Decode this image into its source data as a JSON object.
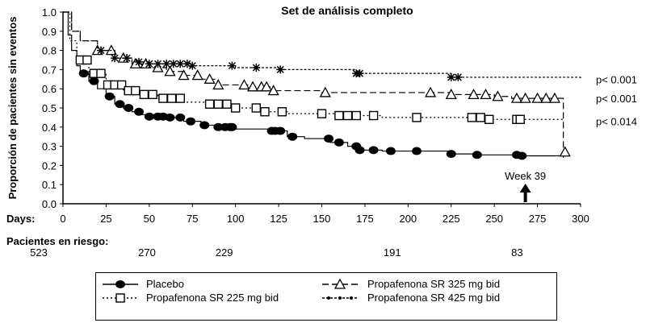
{
  "chart_data": {
    "type": "line",
    "title": "Set de análisis completo",
    "xlabel": "Days:",
    "ylabel": "Proporción de pacientes sin eventos",
    "xlim": [
      0,
      300
    ],
    "ylim": [
      0,
      1.0
    ],
    "x_ticks": [
      "0",
      "25",
      "50",
      "75",
      "100",
      "125",
      "150",
      "175",
      "200",
      "225",
      "250",
      "275",
      "300"
    ],
    "y_ticks": [
      "0.0",
      "0.1",
      "0.2",
      "0.3",
      "0.4",
      "0.5",
      "0.6",
      "0.7",
      "0.8",
      "0.9",
      "1.0"
    ],
    "annotation": "Week 39",
    "annotation_day": 268,
    "p_values": [
      "p< 0.001",
      "p< 0.001",
      "p< 0.014"
    ],
    "risk_label": "Pacientes en riesgo:",
    "risk_table": [
      {
        "day": 0,
        "n": "523"
      },
      {
        "day": 50,
        "n": "270"
      },
      {
        "day": 100,
        "n": "229"
      },
      {
        "day": 200,
        "n": "191"
      },
      {
        "day": 275,
        "n": "83"
      }
    ],
    "series": [
      {
        "name": "Placebo",
        "marker": "circle",
        "dash": "",
        "x": [
          0,
          3,
          5,
          8,
          10,
          15,
          20,
          25,
          30,
          35,
          40,
          45,
          50,
          60,
          70,
          80,
          90,
          100,
          120,
          130,
          140,
          155,
          165,
          172,
          185,
          205,
          225,
          240,
          265,
          290
        ],
        "y": [
          1.0,
          0.88,
          0.8,
          0.72,
          0.68,
          0.64,
          0.6,
          0.56,
          0.52,
          0.5,
          0.48,
          0.465,
          0.455,
          0.45,
          0.43,
          0.41,
          0.4,
          0.39,
          0.38,
          0.35,
          0.34,
          0.32,
          0.3,
          0.28,
          0.275,
          0.275,
          0.26,
          0.255,
          0.25,
          0.24
        ],
        "censored": [
          12,
          18,
          27,
          33,
          38,
          44,
          50,
          55,
          58,
          62,
          68,
          74,
          82,
          90,
          94,
          97,
          98,
          121,
          123,
          126,
          133,
          154,
          160,
          170,
          172,
          180,
          190,
          205,
          225,
          240,
          263,
          266
        ]
      },
      {
        "name": "Propafenona SR 225 mg bid",
        "marker": "square",
        "dash": "2,3",
        "x": [
          0,
          4,
          8,
          15,
          25,
          35,
          45,
          55,
          70,
          85,
          100,
          115,
          130,
          160,
          185,
          210,
          245,
          265,
          290
        ],
        "y": [
          1.0,
          0.85,
          0.75,
          0.68,
          0.62,
          0.59,
          0.57,
          0.55,
          0.53,
          0.52,
          0.5,
          0.48,
          0.47,
          0.46,
          0.45,
          0.45,
          0.44,
          0.44,
          0.43
        ],
        "censored": [
          10,
          14,
          18,
          22,
          26,
          30,
          34,
          38,
          42,
          47,
          52,
          58,
          63,
          68,
          85,
          90,
          95,
          100,
          112,
          117,
          127,
          150,
          160,
          165,
          170,
          180,
          205,
          237,
          242,
          247,
          263,
          265
        ]
      },
      {
        "name": "Propafenona SR 325 mg bid",
        "marker": "triangle",
        "dash": "8,4",
        "x": [
          0,
          5,
          10,
          20,
          30,
          40,
          50,
          60,
          70,
          80,
          90,
          110,
          120,
          150,
          200,
          225,
          250,
          260,
          288,
          290
        ],
        "y": [
          1.0,
          0.9,
          0.85,
          0.8,
          0.76,
          0.73,
          0.71,
          0.69,
          0.67,
          0.65,
          0.62,
          0.61,
          0.59,
          0.58,
          0.58,
          0.57,
          0.56,
          0.55,
          0.55,
          0.27
        ],
        "censored": [
          20,
          28,
          35,
          42,
          48,
          55,
          62,
          70,
          78,
          85,
          90,
          105,
          110,
          115,
          118,
          122,
          152,
          213,
          225,
          238,
          245,
          252,
          263,
          268,
          275,
          280,
          285,
          291
        ]
      },
      {
        "name": "Propafenona SR 425 mg bid",
        "marker": "asterisk",
        "dash": "3,2",
        "x": [
          0,
          5,
          10,
          20,
          30,
          40,
          50,
          75,
          100,
          125,
          170,
          225,
          300
        ],
        "y": [
          1.0,
          0.9,
          0.85,
          0.8,
          0.76,
          0.74,
          0.73,
          0.72,
          0.71,
          0.7,
          0.68,
          0.66,
          0.65
        ],
        "censored": [
          22,
          30,
          37,
          44,
          50,
          55,
          60,
          64,
          68,
          72,
          75,
          98,
          112,
          126,
          170,
          172,
          225,
          229
        ]
      }
    ]
  }
}
